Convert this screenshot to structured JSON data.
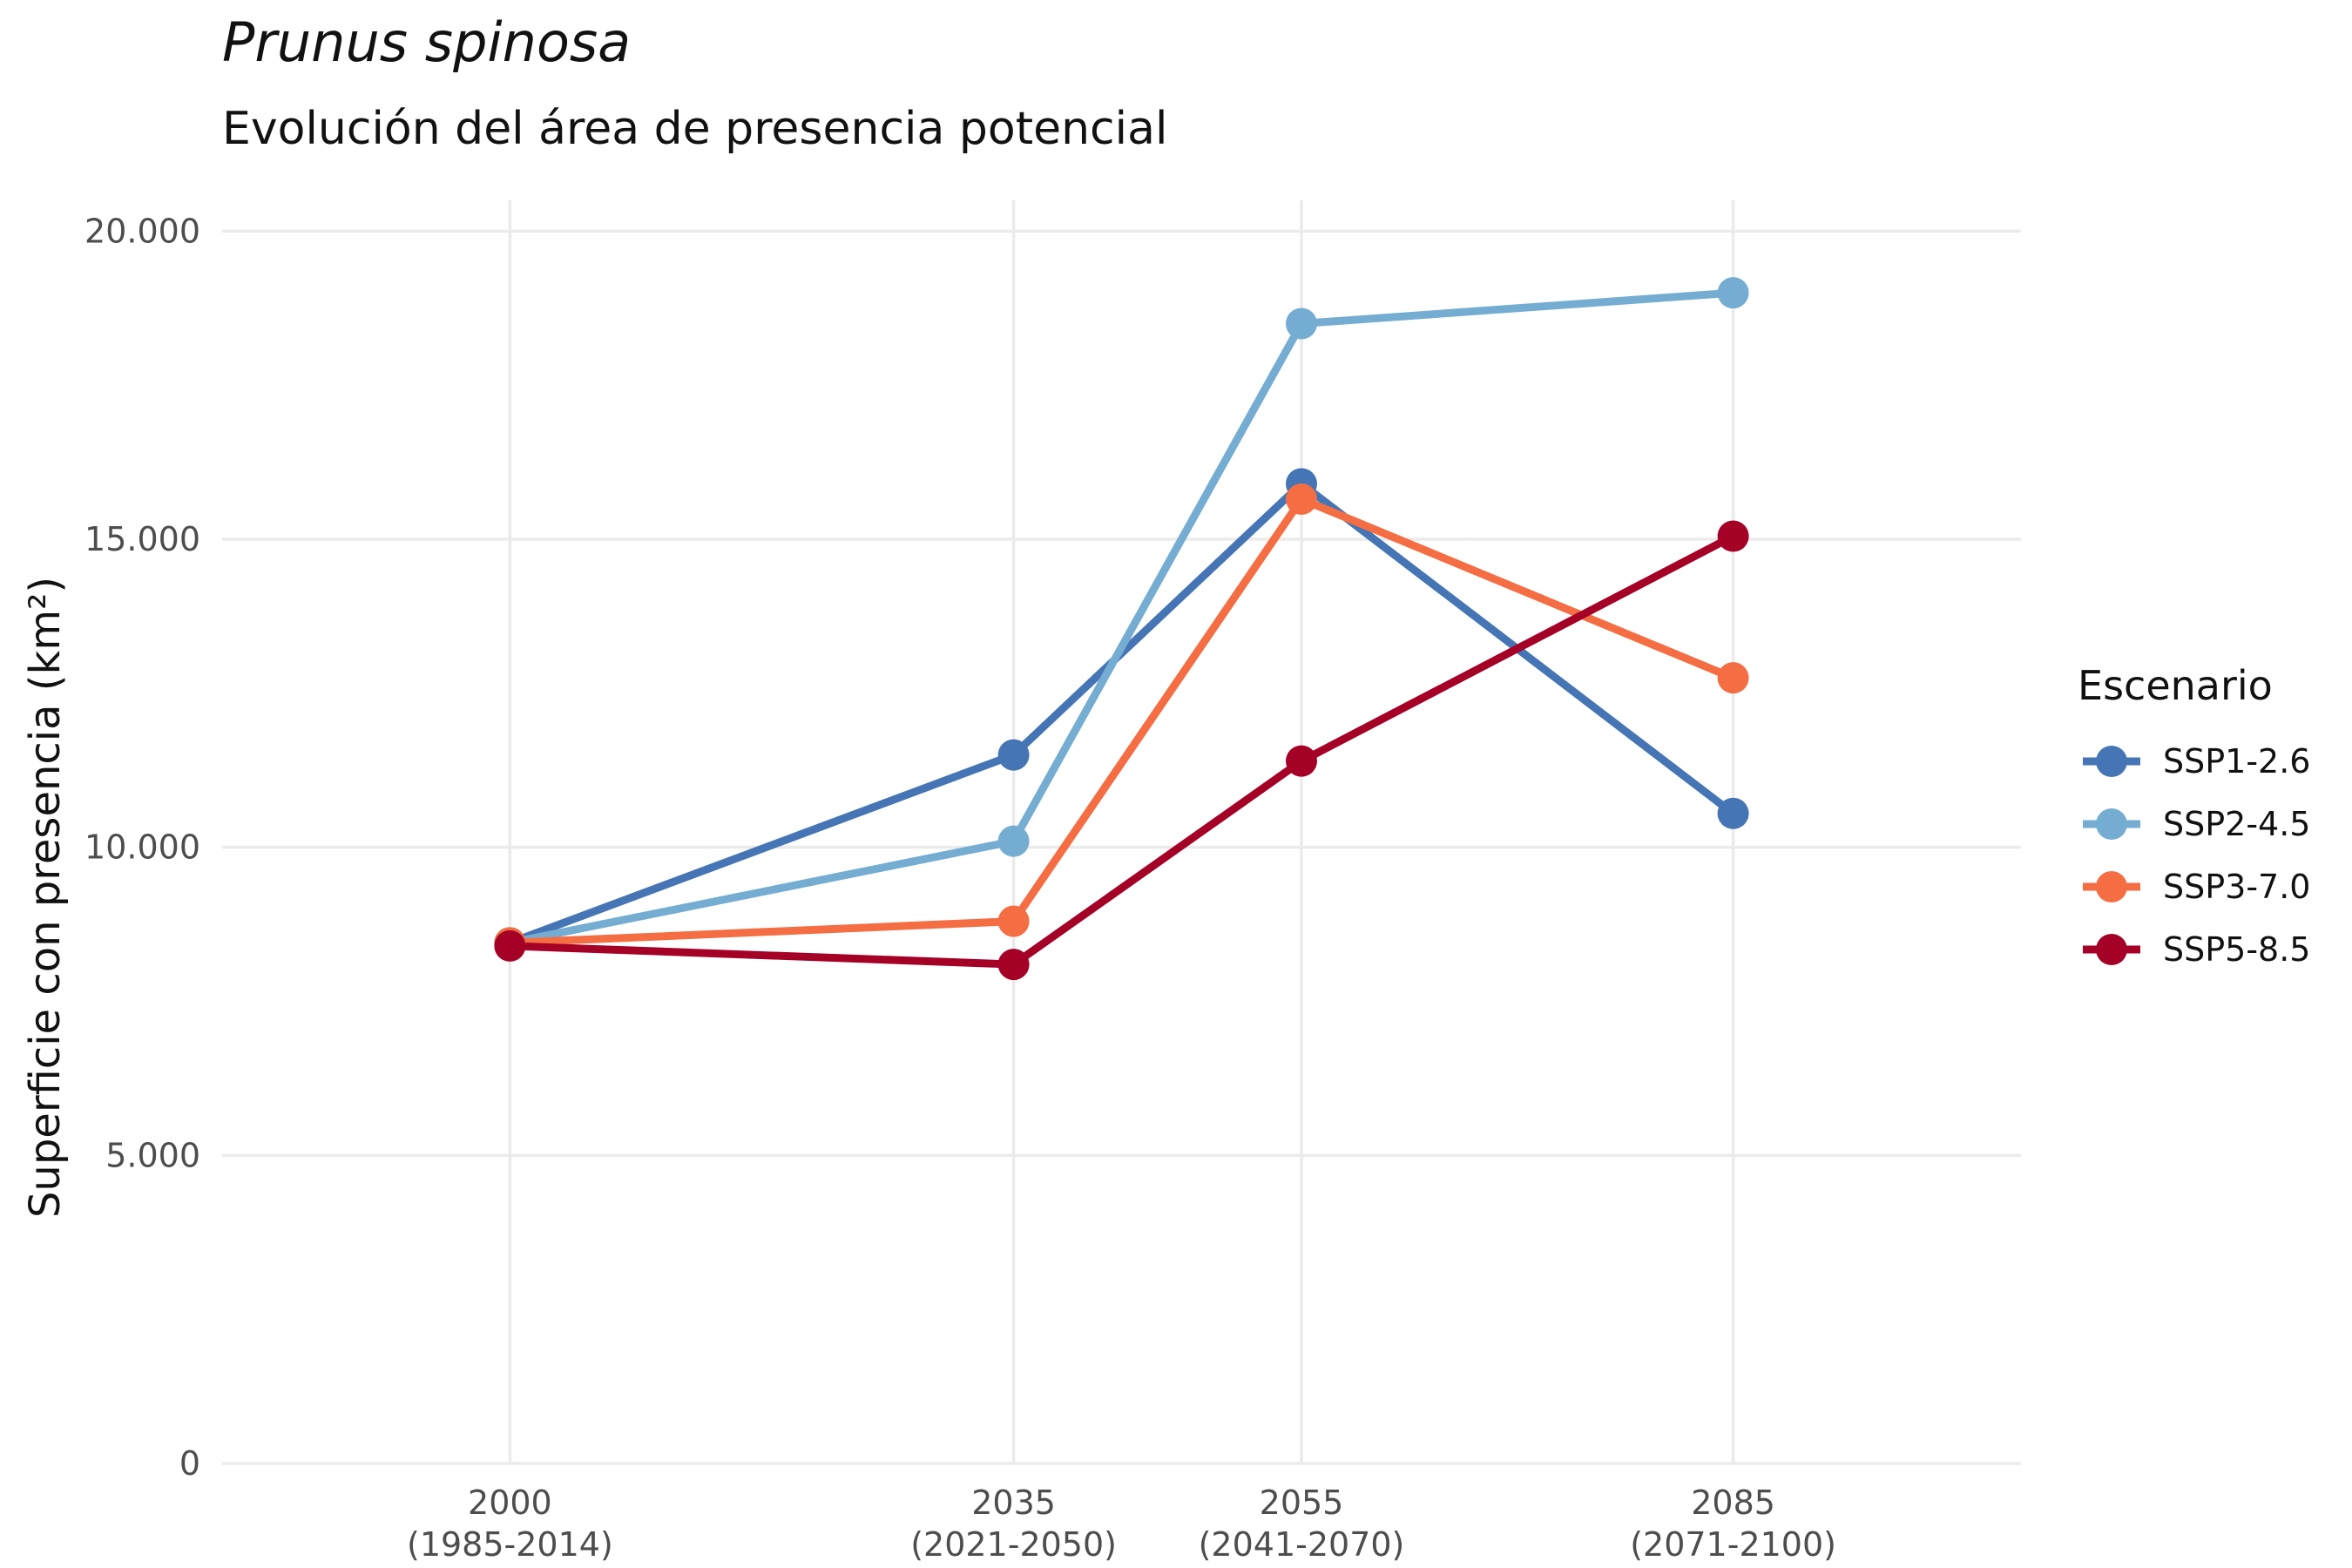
{
  "chart_data": {
    "type": "line",
    "title": "Prunus spinosa",
    "subtitle": "Evolución del área de presencia potencial",
    "ylabel": "Superficie con presencia (km²)",
    "xlabel": "",
    "x": [
      2000,
      2035,
      2055,
      2085
    ],
    "x_tick_labels": [
      [
        "2000",
        "(1985-2014)"
      ],
      [
        "2035",
        "(2021-2050)"
      ],
      [
        "2055",
        "(2041-2070)"
      ],
      [
        "2085",
        "(2071-2100)"
      ]
    ],
    "xlim": [
      1980,
      2105
    ],
    "ylim": [
      0,
      20500
    ],
    "y_ticks": [
      0,
      5000,
      10000,
      15000,
      20000
    ],
    "y_tick_labels": [
      "0",
      "5.000",
      "10.000",
      "15.000",
      "20.000"
    ],
    "grid": true,
    "legend": {
      "title": "Escenario",
      "placement": "right"
    },
    "series": [
      {
        "name": "SSP1-2.6",
        "color": "#4575b4",
        "values": [
          8450,
          11500,
          15900,
          10550
        ]
      },
      {
        "name": "SSP2-4.5",
        "color": "#74add1",
        "values": [
          8450,
          10100,
          18500,
          19000
        ]
      },
      {
        "name": "SSP3-7.0",
        "color": "#f46d43",
        "values": [
          8450,
          8800,
          15650,
          12750
        ]
      },
      {
        "name": "SSP5-8.5",
        "color": "#a50026",
        "values": [
          8400,
          8100,
          11400,
          15050
        ]
      }
    ]
  }
}
